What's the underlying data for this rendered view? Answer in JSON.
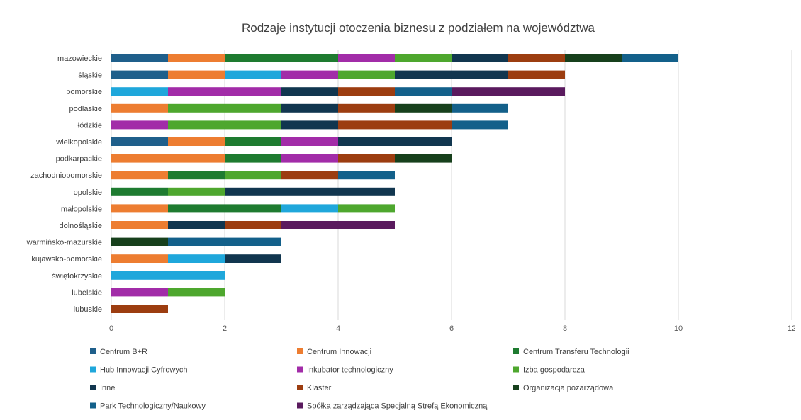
{
  "chart_data": {
    "type": "bar",
    "orientation": "horizontal",
    "stacked": true,
    "title": "Rodzaje instytucji otoczenia biznesu z podziałem na województwa",
    "xlabel": "",
    "ylabel": "",
    "xlim": [
      0,
      12
    ],
    "x_ticks": [
      "0",
      "2",
      "4",
      "6",
      "8",
      "10",
      "12"
    ],
    "grid": "vertical",
    "legend_position": "bottom",
    "categories": [
      "mazowieckie",
      "śląskie",
      "pomorskie",
      "podlaskie",
      "łódzkie",
      "wielkopolskie",
      "podkarpackie",
      "zachodniopomorskie",
      "opolskie",
      "małopolskie",
      "dolnośląskie",
      "warmińsko-mazurskie",
      "kujawsko-pomorskie",
      "świętokrzyskie",
      "lubelskie",
      "lubuskie"
    ],
    "series": [
      {
        "name": "Centrum B+R",
        "color": "#1f5f8b",
        "values": [
          1,
          1,
          0,
          0,
          0,
          1,
          0,
          0,
          0,
          0,
          0,
          0,
          0,
          0,
          0,
          0
        ]
      },
      {
        "name": "Centrum Innowacji",
        "color": "#ed7d31",
        "values": [
          1,
          1,
          0,
          1,
          0,
          1,
          2,
          1,
          0,
          1,
          1,
          0,
          1,
          0,
          0,
          0
        ]
      },
      {
        "name": "Centrum Transferu Technologii",
        "color": "#1e7b30",
        "values": [
          2,
          0,
          0,
          0,
          0,
          1,
          1,
          1,
          1,
          2,
          0,
          0,
          0,
          0,
          0,
          0
        ]
      },
      {
        "name": "Hub Innowacji Cyfrowych",
        "color": "#1fa7db",
        "values": [
          0,
          1,
          1,
          0,
          0,
          0,
          0,
          0,
          0,
          1,
          0,
          0,
          1,
          2,
          0,
          0
        ]
      },
      {
        "name": "Inkubator technologiczny",
        "color": "#a22ca8",
        "values": [
          1,
          1,
          2,
          0,
          1,
          1,
          1,
          0,
          0,
          0,
          0,
          0,
          0,
          0,
          1,
          0
        ]
      },
      {
        "name": "Izba gospodarcza",
        "color": "#4ea72e",
        "values": [
          1,
          1,
          0,
          2,
          2,
          0,
          0,
          1,
          1,
          1,
          0,
          0,
          0,
          0,
          1,
          0
        ]
      },
      {
        "name": "Inne",
        "color": "#11364f",
        "values": [
          1,
          2,
          1,
          1,
          1,
          2,
          0,
          0,
          3,
          0,
          1,
          0,
          1,
          0,
          0,
          0
        ]
      },
      {
        "name": "Klaster",
        "color": "#9c3d10",
        "values": [
          1,
          1,
          1,
          1,
          2,
          0,
          1,
          1,
          0,
          0,
          1,
          0,
          0,
          0,
          0,
          1
        ]
      },
      {
        "name": "Organizacja pozarządowa",
        "color": "#17401c",
        "values": [
          1,
          0,
          0,
          1,
          0,
          0,
          1,
          0,
          0,
          0,
          0,
          1,
          0,
          0,
          0,
          0
        ]
      },
      {
        "name": "Park Technologiczny/Naukowy",
        "color": "#13608a",
        "values": [
          1,
          0,
          1,
          1,
          1,
          0,
          0,
          1,
          0,
          0,
          0,
          2,
          0,
          0,
          0,
          0
        ]
      },
      {
        "name": "Spółka zarządzająca Specjalną Strefą Ekonomiczną",
        "color": "#5a1a5e",
        "values": [
          0,
          0,
          2,
          0,
          0,
          0,
          0,
          0,
          0,
          0,
          2,
          0,
          0,
          0,
          0,
          0
        ]
      }
    ]
  }
}
